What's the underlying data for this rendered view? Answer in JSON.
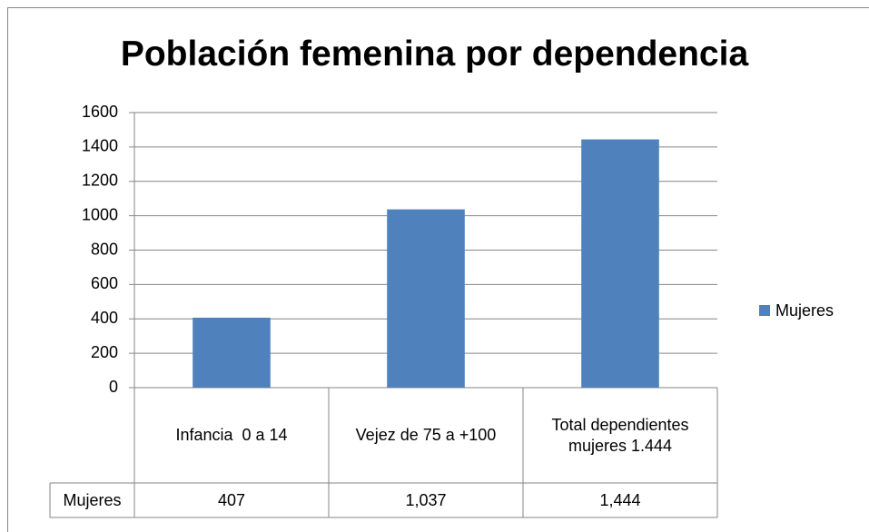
{
  "chart_data": {
    "type": "bar",
    "title": "Población femenina por dependencia",
    "categories": [
      "Infancia  0 a 14",
      "Vejez de 75 a +100",
      "Total dependientes mujeres 1.444"
    ],
    "series": [
      {
        "name": "Mujeres",
        "color": "#4f81bd",
        "values": [
          407,
          1037,
          1444
        ],
        "value_labels": [
          "407",
          "1,037",
          "1,444"
        ]
      }
    ],
    "ylim": [
      0,
      1600
    ],
    "yticks": [
      0,
      200,
      400,
      600,
      800,
      1000,
      1200,
      1400,
      1600
    ],
    "grid": true,
    "legend": "right"
  }
}
